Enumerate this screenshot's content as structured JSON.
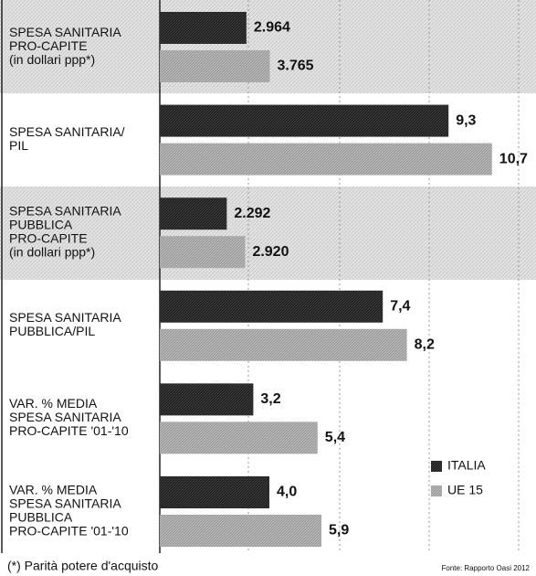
{
  "chart_data": {
    "type": "bar",
    "orientation": "horizontal",
    "categories": [
      [
        "SPESA SANITARIA",
        "PRO-CAPITE",
        "(in dollari ppp*)"
      ],
      [
        "SPESA SANITARIA/",
        "PIL"
      ],
      [
        "SPESA SANITARIA",
        "PUBBLICA",
        "PRO-CAPITE",
        "(in dollari ppp*)"
      ],
      [
        "SPESA SANITARIA",
        "PUBBLICA/PIL"
      ],
      [
        "VAR. % MEDIA",
        "SPESA SANITARIA",
        "PRO-CAPITE '01-'10"
      ],
      [
        "VAR. % MEDIA",
        "SPESA SANITARIA",
        "PUBBLICA",
        "PRO-CAPITE '01-'10"
      ]
    ],
    "series": [
      {
        "name": "ITALIA",
        "color": "#1e1e1e",
        "values": [
          2964,
          9.3,
          2292,
          7.4,
          3.2,
          4.0
        ],
        "value_labels": [
          "2.964",
          "9,3",
          "2.292",
          "7,4",
          "3,2",
          "4,0"
        ]
      },
      {
        "name": "UE 15",
        "color": "#9a9a9a",
        "values": [
          3765,
          10.7,
          2920,
          8.2,
          5.4,
          5.9
        ],
        "value_labels": [
          "3.765",
          "10,7",
          "2.920",
          "8,2",
          "5,4",
          "5,9"
        ]
      }
    ],
    "legend": "lower right",
    "footnote": "(*) Parità potere d'acquisto",
    "source": "Fonte: Rapporto Oasi 2012"
  }
}
